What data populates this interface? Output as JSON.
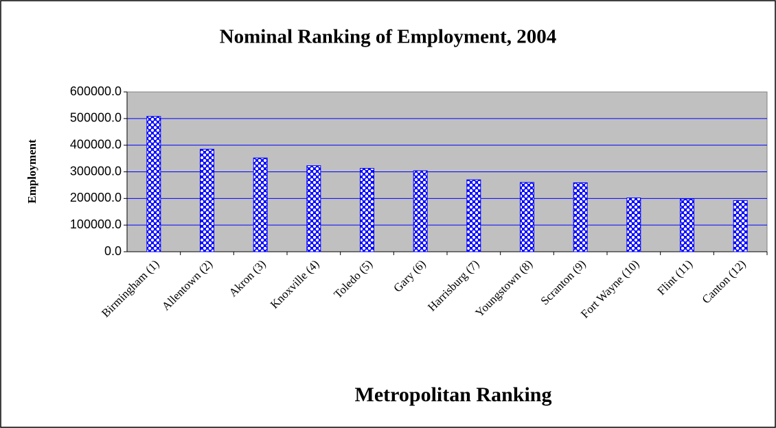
{
  "chart_data": {
    "type": "bar",
    "title": "Nominal Ranking of Employment, 2004",
    "x_label": "Metropolitan Ranking",
    "y_label": "Employment",
    "categories": [
      "Birmingham (1)",
      "Allentown (2)",
      "Akron (3)",
      "Knoxville (4)",
      "Toledo (5)",
      "Gary (6)",
      "Harrisburg (7)",
      "Youngstown (8)",
      "Scranton (9)",
      "Fort Wayne (10)",
      "Flint (11)",
      "Canton (12)"
    ],
    "values": [
      508000,
      385000,
      352000,
      323000,
      313000,
      304000,
      270000,
      260000,
      259000,
      202000,
      198000,
      192000
    ],
    "color": "#0000ff",
    "ylim": [
      0,
      600000
    ],
    "yticks": [
      {
        "value": 0,
        "label": "0.0"
      },
      {
        "value": 100000,
        "label": "100000.0"
      },
      {
        "value": 200000,
        "label": "200000.0"
      },
      {
        "value": 300000,
        "label": "300000.0"
      },
      {
        "value": 400000,
        "label": "400000.0"
      },
      {
        "value": 500000,
        "label": "500000.0"
      },
      {
        "value": 600000,
        "label": "600000.0"
      }
    ],
    "grid": true
  }
}
